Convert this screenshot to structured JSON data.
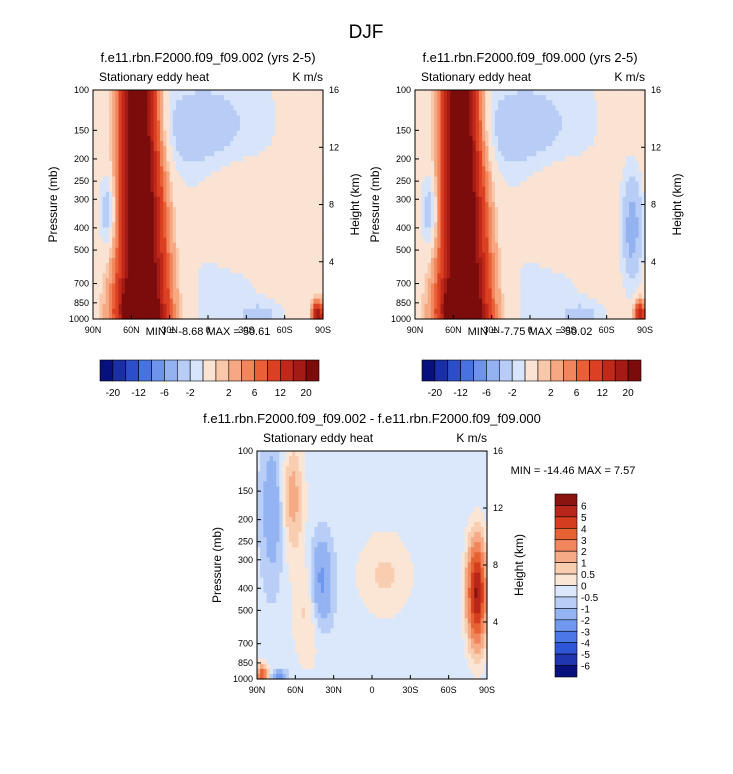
{
  "figure": {
    "title": "DJF"
  },
  "colors": {
    "top_levels": [
      "-20",
      "-16",
      "-12",
      "-8",
      "-6",
      "-4",
      "-2",
      "-1",
      "1",
      "2",
      "4",
      "6",
      "8",
      "12",
      "16",
      "20"
    ],
    "top_labels": [
      "-20",
      "-12",
      "-6",
      "-2",
      "2",
      "6",
      "12",
      "20"
    ],
    "top_palette": [
      "#08107d",
      "#1a2fa3",
      "#2c4fc9",
      "#4872e0",
      "#6e93ea",
      "#94b2f0",
      "#b8cdf5",
      "#d7e4fa",
      "#fbe3d3",
      "#f9c7aa",
      "#f5a882",
      "#f1855c",
      "#e96036",
      "#db4022",
      "#c0281a",
      "#a31b14",
      "#7c0c0c"
    ],
    "diff_levels": [
      "-6",
      "-5",
      "-4",
      "-3",
      "-2",
      "-1",
      "-0.5",
      "0",
      "0.5",
      "1",
      "2",
      "3",
      "4",
      "5",
      "6"
    ],
    "diff_palette": [
      "#08107d",
      "#1f36b0",
      "#2f56d6",
      "#4a78e6",
      "#6f98ee",
      "#93b3f2",
      "#b9cef6",
      "#dbe8fb",
      "#fbe6d6",
      "#f9cdb0",
      "#f5ab86",
      "#f1855c",
      "#e66232",
      "#d43e1e",
      "#b8261a",
      "#8b1410"
    ]
  },
  "chart_data": [
    {
      "type": "heatmap",
      "title": "f.e11.rbn.F2000.f09_f09.002 (yrs 2-5)",
      "subtitle_left": "Stationary eddy heat",
      "subtitle_right": "K m/s",
      "ylabel": "Pressure (mb)",
      "ylabel_right": "Height (km)",
      "x_ticks": [
        "90N",
        "60N",
        "30N",
        "0",
        "30S",
        "60S",
        "90S"
      ],
      "y_ticks": [
        "100",
        "150",
        "200",
        "250",
        "300",
        "400",
        "500",
        "700",
        "850",
        "1000"
      ],
      "y_ticks_right": [
        "16",
        "12",
        "8",
        "4"
      ],
      "stats": "MIN =  -8.68  MAX =  50.61",
      "x_lat_range": [
        90,
        -90
      ],
      "y_pressure_range": [
        100,
        1000
      ],
      "y_scale": "log",
      "features": [
        {
          "kind": "positive band",
          "lat_center": 55,
          "lat_halfwidth_top": 12,
          "lat_halfwidth_bottom": 18,
          "peak": 30
        },
        {
          "kind": "negative lobe",
          "lat": 75,
          "pressure": 350,
          "value": -5
        },
        {
          "kind": "positive spot",
          "lat": -85,
          "pressure": 950,
          "value": 20
        }
      ]
    },
    {
      "type": "heatmap",
      "title": "f.e11.rbn.F2000.f09_f09.000 (yrs 2-5)",
      "subtitle_left": "Stationary eddy heat",
      "subtitle_right": "K m/s",
      "ylabel": "Pressure (mb)",
      "ylabel_right": "Height (km)",
      "x_ticks": [
        "90N",
        "60N",
        "30N",
        "0",
        "30S",
        "60S",
        "90S"
      ],
      "y_ticks": [
        "100",
        "150",
        "200",
        "250",
        "300",
        "400",
        "500",
        "700",
        "850",
        "1000"
      ],
      "y_ticks_right": [
        "16",
        "12",
        "8",
        "4"
      ],
      "stats": "MIN =  -7.75  MAX =  50.02",
      "x_lat_range": [
        90,
        -90
      ],
      "y_pressure_range": [
        100,
        1000
      ],
      "y_scale": "log",
      "features": [
        {
          "kind": "positive band",
          "lat_center": 55,
          "lat_halfwidth_top": 12,
          "lat_halfwidth_bottom": 18,
          "peak": 30
        },
        {
          "kind": "negative lobe",
          "lat": 75,
          "pressure": 350,
          "value": -5
        },
        {
          "kind": "negative lobe",
          "lat": -80,
          "pressure": 400,
          "value": -5
        },
        {
          "kind": "positive spot",
          "lat": -85,
          "pressure": 950,
          "value": 16
        }
      ]
    },
    {
      "type": "heatmap",
      "title": "f.e11.rbn.F2000.f09_f09.002 - f.e11.rbn.F2000.f09_f09.000",
      "subtitle_left": "Stationary eddy heat",
      "subtitle_right": "K m/s",
      "ylabel": "Pressure (mb)",
      "ylabel_right": "Height (km)",
      "x_ticks": [
        "90N",
        "60N",
        "30N",
        "0",
        "30S",
        "60S",
        "90S"
      ],
      "y_ticks": [
        "100",
        "150",
        "200",
        "250",
        "300",
        "400",
        "500",
        "700",
        "850",
        "1000"
      ],
      "y_ticks_right": [
        "16",
        "12",
        "8",
        "4"
      ],
      "stats": "MIN = -14.46  MAX =   7.57",
      "x_lat_range": [
        90,
        -90
      ],
      "y_pressure_range": [
        100,
        1000
      ],
      "y_scale": "log",
      "features": [
        {
          "kind": "positive lobe",
          "lat": -82,
          "pressure": 400,
          "value": 6
        },
        {
          "kind": "negative lobe",
          "lat": 40,
          "pressure": 380,
          "value": -2
        },
        {
          "kind": "negative lobe",
          "lat": 78,
          "pressure": 200,
          "value": -1
        },
        {
          "kind": "positive lobe",
          "lat": 62,
          "pressure": 150,
          "value": 1.5
        },
        {
          "kind": "positive spot",
          "lat": 85,
          "pressure": 950,
          "value": 4
        }
      ]
    }
  ]
}
